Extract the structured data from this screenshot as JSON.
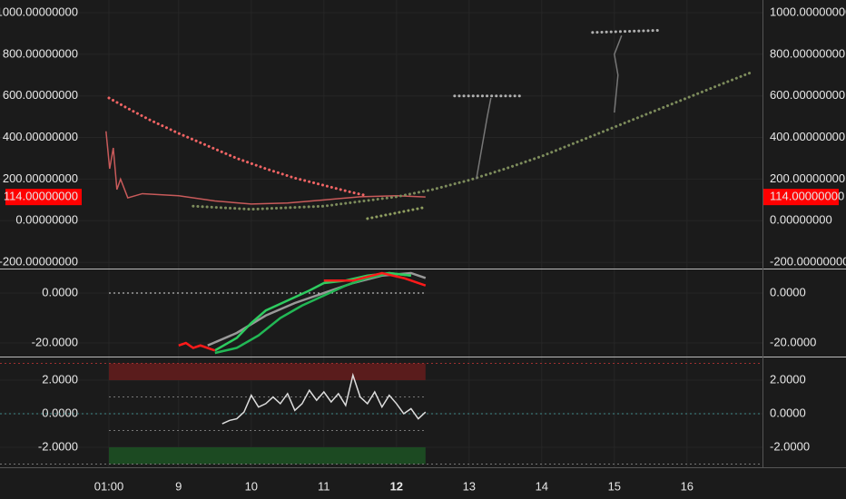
{
  "chart_data": [
    {
      "type": "line",
      "ylim": [
        -230,
        1061
      ],
      "yticks": [
        {
          "value": 1000,
          "label": "1000.00000000"
        },
        {
          "value": 800,
          "label": "800.00000000"
        },
        {
          "value": 600,
          "label": "600.00000000"
        },
        {
          "value": 400,
          "label": "400.00000000"
        },
        {
          "value": 200,
          "label": "200.00000000"
        },
        {
          "value": 0,
          "label": "0.00000000"
        },
        {
          "value": -200,
          "label": "-200.00000000"
        }
      ],
      "price_label": {
        "value": 114,
        "label": "114.00000000",
        "color": "#ff0000"
      },
      "series": [
        {
          "color": "#c85a5a",
          "style": "solid",
          "x": [
            8.0,
            8.05,
            8.1,
            8.15,
            8.2,
            8.3,
            8.5,
            9,
            9.5,
            10,
            10.5,
            11,
            11.5,
            12,
            12.4
          ],
          "values": [
            430,
            250,
            350,
            150,
            200,
            110,
            130,
            120,
            95,
            80,
            85,
            100,
            115,
            120,
            114
          ]
        },
        {
          "color": "#f06464",
          "style": "dots",
          "x": [
            8.04,
            8.3,
            8.6,
            9,
            9.4,
            9.8,
            10.2,
            10.6,
            11,
            11.4,
            11.6
          ],
          "values": [
            590,
            540,
            485,
            420,
            360,
            300,
            250,
            205,
            170,
            135,
            120
          ]
        },
        {
          "color": "#7d8c5c",
          "style": "dots",
          "x": [
            9.2,
            10,
            11,
            12,
            12.5,
            13,
            13.5,
            14,
            14.5,
            15,
            15.5,
            16,
            16.5,
            16.9
          ],
          "values": [
            70,
            55,
            70,
            115,
            150,
            195,
            250,
            310,
            380,
            450,
            520,
            590,
            660,
            715
          ]
        },
        {
          "color": "#8f9e60",
          "style": "dots",
          "x": [
            11.6,
            12.4
          ],
          "values": [
            10,
            65
          ]
        },
        {
          "color": "#b0b0b0",
          "style": "dots",
          "x": [
            12.8,
            13.7
          ],
          "values": [
            600,
            600
          ]
        },
        {
          "color": "#b0b0b0",
          "style": "dots",
          "x": [
            14.7,
            15.6
          ],
          "values": [
            905,
            915
          ]
        },
        {
          "color": "#777777",
          "style": "solid",
          "x": [
            13.1,
            13.2,
            13.25,
            13.3
          ],
          "values": [
            200,
            400,
            500,
            590
          ]
        },
        {
          "color": "#777777",
          "style": "solid",
          "x": [
            15.0,
            15.05,
            15.0,
            15.1
          ],
          "values": [
            520,
            700,
            800,
            890
          ]
        }
      ]
    },
    {
      "type": "line",
      "ylim": [
        -25.45,
        9.45
      ],
      "yticks": [
        {
          "value": 0,
          "label": "0.0000"
        },
        {
          "value": -20,
          "label": "-20.0000"
        }
      ],
      "hlines": [
        {
          "value": 0,
          "color": "#dddddd",
          "x": [
            8.04,
            12.4
          ]
        }
      ],
      "series": [
        {
          "color": "#999999",
          "style": "solid",
          "x": [
            9.4,
            9.8,
            10.2,
            10.6,
            11,
            11.4,
            11.8,
            12.2,
            12.4
          ],
          "values": [
            -21,
            -16,
            -9,
            -4,
            0,
            4,
            7,
            8,
            6
          ]
        },
        {
          "color": "#22b855",
          "style": "solid",
          "x": [
            9.5,
            9.8,
            10.1,
            10.4,
            10.7,
            11,
            11.3,
            11.6,
            11.9,
            12.2
          ],
          "values": [
            -24,
            -22,
            -17,
            -10,
            -5,
            -1,
            3,
            6,
            8,
            7
          ]
        },
        {
          "color": "#2ecc60",
          "style": "solid",
          "x": [
            9.5,
            9.8,
            10,
            10.2,
            10.5,
            10.8,
            11,
            11.3,
            11.6,
            11.9,
            12.2
          ],
          "values": [
            -23,
            -18,
            -12,
            -7,
            -3,
            1,
            4,
            5,
            7,
            8,
            7
          ]
        },
        {
          "color": "#ff1a1a",
          "style": "solid",
          "x": [
            9.0,
            9.1,
            9.2,
            9.3,
            9.5
          ],
          "values": [
            -21,
            -20,
            -22,
            -21,
            -23
          ]
        },
        {
          "color": "#ff1a1a",
          "style": "solid",
          "x": [
            11.0,
            11.4,
            11.8,
            12.1,
            12.4
          ],
          "values": [
            5,
            5,
            8,
            6,
            3
          ]
        }
      ]
    },
    {
      "type": "line",
      "ylim": [
        -3.19,
        3.3
      ],
      "yticks": [
        {
          "value": 2,
          "label": "2.0000"
        },
        {
          "value": 0,
          "label": "0.0000"
        },
        {
          "value": -2,
          "label": "-2.0000"
        }
      ],
      "xlim": [
        6.54,
        17.04
      ],
      "xticks": [
        {
          "value": 8.04,
          "label": "01:00"
        },
        9,
        10,
        11,
        12,
        13,
        14,
        15,
        16
      ],
      "bands": [
        {
          "from": 2,
          "to": 3,
          "color": "#5a1c1c",
          "x": [
            8.04,
            12.4
          ]
        },
        {
          "from": -2,
          "to": -3,
          "color": "#1c4a22",
          "x": [
            8.04,
            12.4
          ]
        }
      ],
      "hlines": [
        {
          "value": 3,
          "color": "#a03030"
        },
        {
          "value": 1,
          "color": "#777777",
          "x": [
            8.04,
            12.4
          ]
        },
        {
          "value": 0,
          "color": "#3f8a8a"
        },
        {
          "value": -1,
          "color": "#777777",
          "x": [
            8.04,
            12.4
          ]
        },
        {
          "value": -3,
          "color": "#777777"
        }
      ],
      "series": [
        {
          "color": "#dddddd",
          "style": "solid",
          "x": [
            9.6,
            9.7,
            9.8,
            9.9,
            10.0,
            10.1,
            10.2,
            10.3,
            10.4,
            10.5,
            10.6,
            10.7,
            10.8,
            10.9,
            11.0,
            11.1,
            11.2,
            11.3,
            11.4,
            11.5,
            11.6,
            11.7,
            11.8,
            11.9,
            12.0,
            12.1,
            12.2,
            12.3,
            12.4
          ],
          "values": [
            -0.6,
            -0.4,
            -0.3,
            0.1,
            1.1,
            0.4,
            0.6,
            1.0,
            0.6,
            1.2,
            0.2,
            0.6,
            1.4,
            0.8,
            1.3,
            0.7,
            1.2,
            0.5,
            2.3,
            1.0,
            0.6,
            1.3,
            0.4,
            1.1,
            0.6,
            0.0,
            0.3,
            -0.3,
            0.1
          ]
        }
      ]
    }
  ]
}
